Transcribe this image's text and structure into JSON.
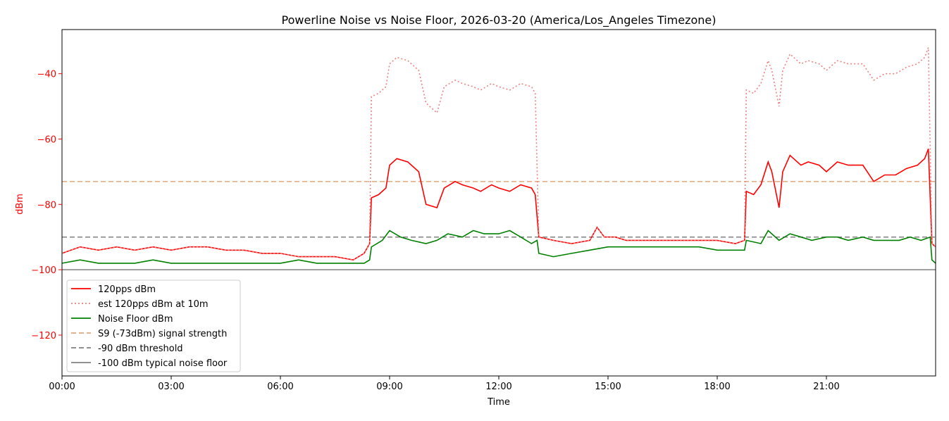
{
  "chart_data": {
    "type": "line",
    "title": "Powerline Noise vs Noise Floor, 2026-03-20 (America/Los_Angeles Timezone)",
    "xlabel": "Time",
    "ylabel": "dBm",
    "xlim": [
      0,
      24
    ],
    "ylim": [
      -132.5,
      -26.5
    ],
    "x_ticks": [
      {
        "value": 0,
        "label": "00:00"
      },
      {
        "value": 3,
        "label": "03:00"
      },
      {
        "value": 6,
        "label": "06:00"
      },
      {
        "value": 9,
        "label": "09:00"
      },
      {
        "value": 12,
        "label": "12:00"
      },
      {
        "value": 15,
        "label": "15:00"
      },
      {
        "value": 18,
        "label": "18:00"
      },
      {
        "value": 21,
        "label": "21:00"
      }
    ],
    "y_ticks": [
      {
        "value": -40,
        "label": "−40"
      },
      {
        "value": -60,
        "label": "−60"
      },
      {
        "value": -80,
        "label": "−80"
      },
      {
        "value": -100,
        "label": "−100"
      },
      {
        "value": -120,
        "label": "−120"
      }
    ],
    "grid": false,
    "legend_position": "lower-left",
    "series": [
      {
        "name": "120pps dBm",
        "color": "#ff0000",
        "style": "solid",
        "x": [
          0,
          0.25,
          0.5,
          1.0,
          1.5,
          2.0,
          2.5,
          3.0,
          3.5,
          4.0,
          4.5,
          5.0,
          5.5,
          6.0,
          6.5,
          7.0,
          7.5,
          8.0,
          8.3,
          8.45,
          8.5,
          8.7,
          8.9,
          9.0,
          9.2,
          9.5,
          9.8,
          10.0,
          10.3,
          10.5,
          10.8,
          11.0,
          11.3,
          11.5,
          11.8,
          12.0,
          12.3,
          12.6,
          12.9,
          13.0,
          13.1,
          13.5,
          14.0,
          14.5,
          14.7,
          14.9,
          15.2,
          15.5,
          16.0,
          16.5,
          17.0,
          17.5,
          18.0,
          18.5,
          18.75,
          18.8,
          19.0,
          19.2,
          19.4,
          19.5,
          19.7,
          19.8,
          20.0,
          20.3,
          20.5,
          20.8,
          21.0,
          21.3,
          21.6,
          22.0,
          22.3,
          22.6,
          22.9,
          23.2,
          23.5,
          23.7,
          23.8,
          23.9,
          24.0
        ],
        "y": [
          -95,
          -94,
          -93,
          -94,
          -93,
          -94,
          -93,
          -94,
          -93,
          -93,
          -94,
          -94,
          -95,
          -95,
          -96,
          -96,
          -96,
          -97,
          -95,
          -92,
          -78,
          -77,
          -75,
          -68,
          -66,
          -67,
          -70,
          -80,
          -81,
          -75,
          -73,
          -74,
          -75,
          -76,
          -74,
          -75,
          -76,
          -74,
          -75,
          -77,
          -90,
          -91,
          -92,
          -91,
          -87,
          -90,
          -90,
          -91,
          -91,
          -91,
          -91,
          -91,
          -91,
          -92,
          -91,
          -76,
          -77,
          -74,
          -67,
          -70,
          -81,
          -70,
          -65,
          -68,
          -67,
          -68,
          -70,
          -67,
          -68,
          -68,
          -73,
          -71,
          -71,
          -69,
          -68,
          -66,
          -63,
          -92,
          -93
        ]
      },
      {
        "name": "est 120pps dBm at 10m",
        "color": "#f08080",
        "style": "dotted",
        "x": [
          0,
          0.25,
          0.5,
          1.0,
          1.5,
          2.0,
          2.5,
          3.0,
          3.5,
          4.0,
          4.5,
          5.0,
          5.5,
          6.0,
          6.5,
          7.0,
          7.5,
          8.0,
          8.3,
          8.45,
          8.5,
          8.7,
          8.9,
          9.0,
          9.2,
          9.5,
          9.8,
          10.0,
          10.3,
          10.5,
          10.8,
          11.0,
          11.3,
          11.5,
          11.8,
          12.0,
          12.3,
          12.6,
          12.9,
          13.0,
          13.1,
          13.5,
          14.0,
          14.5,
          14.7,
          14.9,
          15.2,
          15.5,
          16.0,
          16.5,
          17.0,
          17.5,
          18.0,
          18.5,
          18.75,
          18.8,
          19.0,
          19.2,
          19.4,
          19.5,
          19.7,
          19.8,
          20.0,
          20.3,
          20.5,
          20.8,
          21.0,
          21.3,
          21.6,
          22.0,
          22.3,
          22.6,
          22.9,
          23.2,
          23.5,
          23.7,
          23.8,
          23.9,
          24.0
        ],
        "y": [
          -95,
          -94,
          -93,
          -94,
          -93,
          -94,
          -93,
          -94,
          -93,
          -93,
          -94,
          -94,
          -95,
          -95,
          -96,
          -96,
          -96,
          -97,
          -95,
          -92,
          -47,
          -46,
          -44,
          -37,
          -35,
          -36,
          -39,
          -49,
          -52,
          -44,
          -42,
          -43,
          -44,
          -45,
          -43,
          -44,
          -45,
          -43,
          -44,
          -46,
          -90,
          -91,
          -92,
          -91,
          -87,
          -90,
          -90,
          -91,
          -91,
          -91,
          -91,
          -91,
          -91,
          -92,
          -91,
          -45,
          -46,
          -43,
          -36,
          -39,
          -50,
          -39,
          -34,
          -37,
          -36,
          -37,
          -39,
          -36,
          -37,
          -37,
          -42,
          -40,
          -40,
          -38,
          -37,
          -35,
          -32,
          -92,
          -93
        ]
      },
      {
        "name": "Noise Floor dBm",
        "color": "#008000",
        "style": "solid",
        "x": [
          0,
          0.5,
          1.0,
          1.5,
          2.0,
          2.5,
          3.0,
          3.5,
          4.0,
          4.5,
          5.0,
          5.5,
          6.0,
          6.5,
          7.0,
          7.5,
          8.0,
          8.3,
          8.45,
          8.5,
          8.8,
          9.0,
          9.3,
          9.6,
          10.0,
          10.3,
          10.6,
          11.0,
          11.3,
          11.6,
          12.0,
          12.3,
          12.6,
          12.9,
          13.05,
          13.1,
          13.5,
          14.0,
          14.5,
          15.0,
          15.5,
          16.0,
          16.5,
          17.0,
          17.5,
          18.0,
          18.5,
          18.75,
          18.8,
          19.2,
          19.4,
          19.7,
          20.0,
          20.3,
          20.6,
          21.0,
          21.3,
          21.6,
          22.0,
          22.3,
          22.6,
          23.0,
          23.3,
          23.6,
          23.85,
          23.9,
          24.0
        ],
        "y": [
          -98,
          -97,
          -98,
          -98,
          -98,
          -97,
          -98,
          -98,
          -98,
          -98,
          -98,
          -98,
          -98,
          -97,
          -98,
          -98,
          -98,
          -98,
          -97,
          -93,
          -91,
          -88,
          -90,
          -91,
          -92,
          -91,
          -89,
          -90,
          -88,
          -89,
          -89,
          -88,
          -90,
          -92,
          -91,
          -95,
          -96,
          -95,
          -94,
          -93,
          -93,
          -93,
          -93,
          -93,
          -93,
          -94,
          -94,
          -94,
          -91,
          -92,
          -88,
          -91,
          -89,
          -90,
          -91,
          -90,
          -90,
          -91,
          -90,
          -91,
          -91,
          -91,
          -90,
          -91,
          -90,
          -97,
          -98
        ]
      }
    ],
    "reference_lines": [
      {
        "name": "S9 (-73dBm) signal strength",
        "y": -73,
        "color": "#e0a87a",
        "style": "dashed"
      },
      {
        "name": "-90 dBm threshold",
        "y": -90,
        "color": "#808080",
        "style": "dashed"
      },
      {
        "name": "-100 dBm typical noise floor",
        "y": -100,
        "color": "#808080",
        "style": "solid"
      }
    ]
  }
}
